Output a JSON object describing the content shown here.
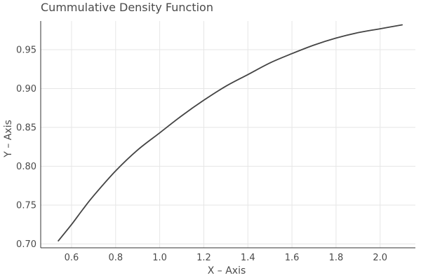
{
  "chart_data": {
    "type": "line",
    "title": "Cummulative Density Function",
    "xlabel": "X – Axis",
    "ylabel": "Y – Axis",
    "xlim": [
      0.46,
      2.16
    ],
    "ylim": [
      0.695,
      0.987
    ],
    "grid": true,
    "legend": "none",
    "line_color": "#444444",
    "grid_color": "#e6e6e6",
    "x_ticks": [
      0.6,
      0.8,
      1.0,
      1.2,
      1.4,
      1.6,
      1.8,
      2.0
    ],
    "x_tick_labels": [
      "0.6",
      "0.8",
      "1.0",
      "1.2",
      "1.4",
      "1.6",
      "1.8",
      "2.0"
    ],
    "y_ticks": [
      0.7,
      0.75,
      0.8,
      0.85,
      0.9,
      0.95
    ],
    "y_tick_labels": [
      "0.70",
      "0.75",
      "0.80",
      "0.85",
      "0.90",
      "0.95"
    ],
    "series": [
      {
        "x": [
          0.54,
          0.6,
          0.65,
          0.7,
          0.8,
          0.9,
          1.0,
          1.1,
          1.2,
          1.3,
          1.4,
          1.5,
          1.6,
          1.7,
          1.8,
          1.9,
          2.0,
          2.1
        ],
        "y": [
          0.704,
          0.725,
          0.744,
          0.762,
          0.794,
          0.821,
          0.843,
          0.865,
          0.885,
          0.903,
          0.918,
          0.933,
          0.945,
          0.956,
          0.965,
          0.972,
          0.977,
          0.982
        ]
      }
    ]
  }
}
